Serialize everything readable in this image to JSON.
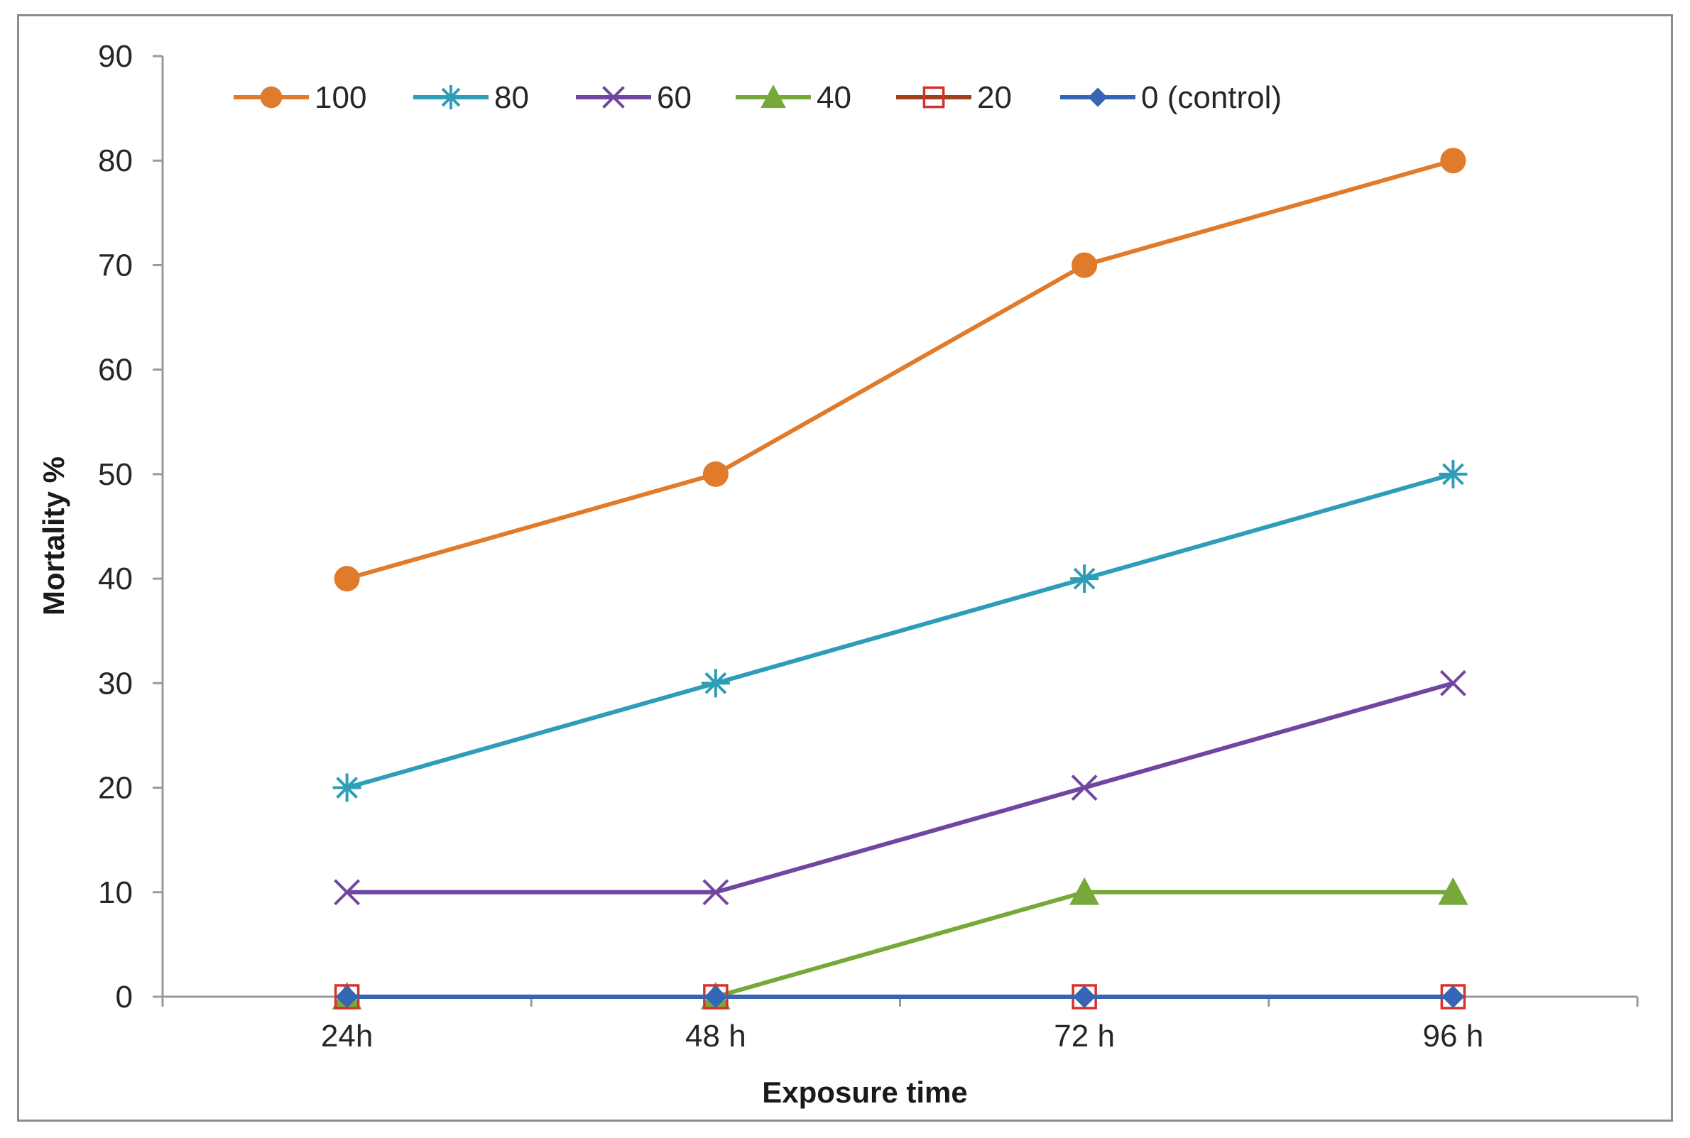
{
  "chart_data": {
    "type": "line",
    "title": "",
    "xlabel": "Exposure time",
    "ylabel": "Mortality  %",
    "categories": [
      "24h",
      "48 h",
      "72 h",
      "96 h"
    ],
    "ylim": [
      0,
      90
    ],
    "yticks": [
      0,
      10,
      20,
      30,
      40,
      50,
      60,
      70,
      80,
      90
    ],
    "grid": false,
    "legend_position": "top",
    "series": [
      {
        "name": "100",
        "values": [
          40,
          50,
          70,
          80
        ],
        "color": "#E07B2C",
        "marker": "circle"
      },
      {
        "name": "80",
        "values": [
          20,
          30,
          40,
          50
        ],
        "color": "#2E9DB8",
        "marker": "asterisk"
      },
      {
        "name": "60",
        "values": [
          10,
          10,
          20,
          30
        ],
        "color": "#7046A0",
        "marker": "x"
      },
      {
        "name": "40",
        "values": [
          0,
          0,
          10,
          10
        ],
        "color": "#77A83A",
        "marker": "triangle"
      },
      {
        "name": "20",
        "values": [
          0,
          0,
          0,
          0
        ],
        "color": "#A0401C",
        "marker": "open-square",
        "marker_color": "#D9302B"
      },
      {
        "name": "0 (control)",
        "values": [
          0,
          0,
          0,
          0
        ],
        "color": "#3566B5",
        "marker": "diamond"
      }
    ]
  }
}
